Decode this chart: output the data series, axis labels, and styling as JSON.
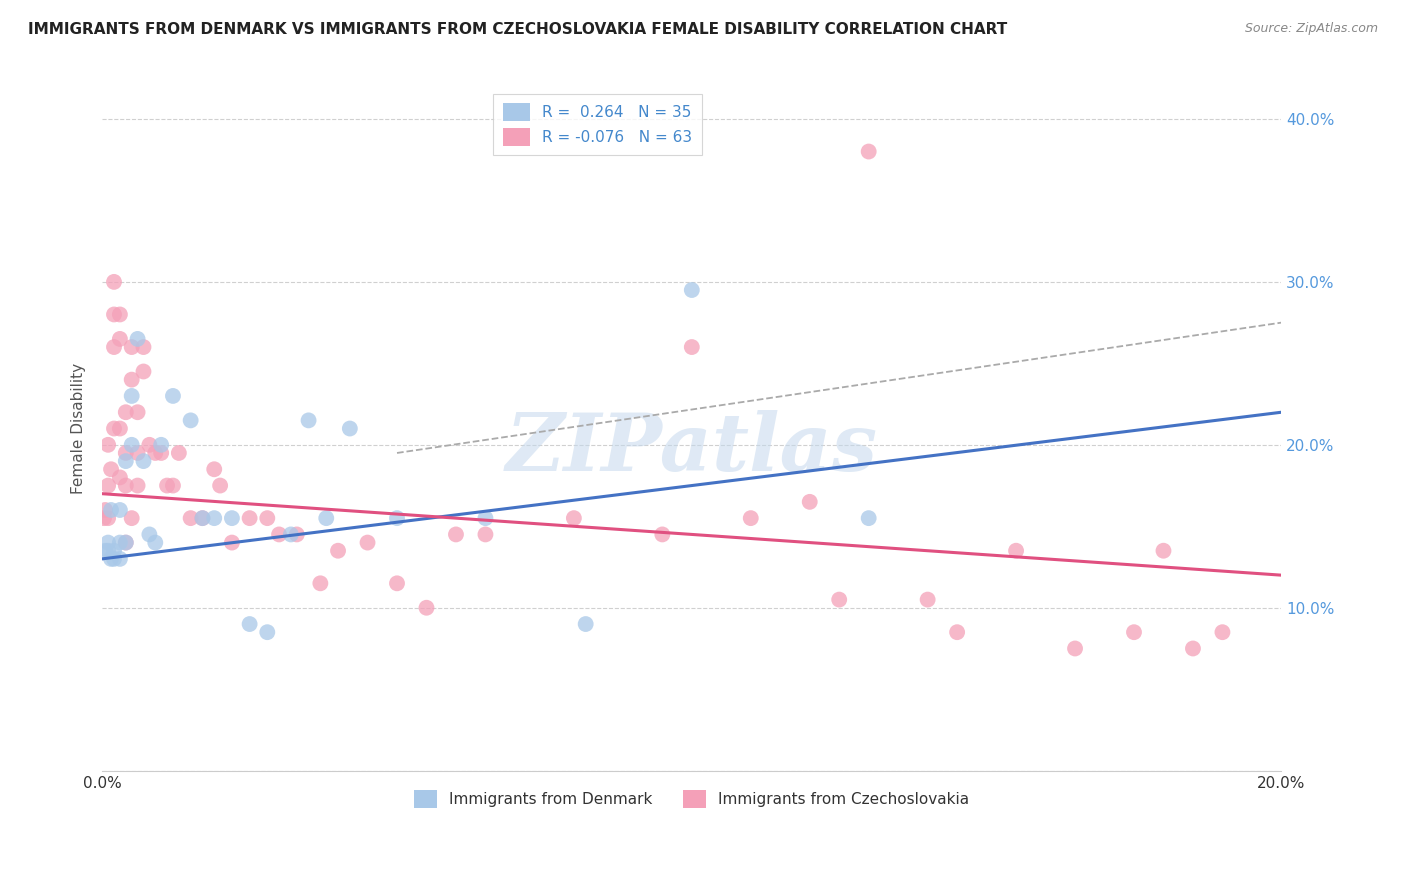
{
  "title": "IMMIGRANTS FROM DENMARK VS IMMIGRANTS FROM CZECHOSLOVAKIA FEMALE DISABILITY CORRELATION CHART",
  "source": "Source: ZipAtlas.com",
  "ylabel": "Female Disability",
  "xlim": [
    0.0,
    0.2
  ],
  "ylim": [
    0.0,
    0.42
  ],
  "xticks": [
    0.0,
    0.02,
    0.04,
    0.06,
    0.08,
    0.1,
    0.12,
    0.14,
    0.16,
    0.18,
    0.2
  ],
  "xtick_labels": [
    "0.0%",
    "",
    "",
    "",
    "",
    "",
    "",
    "",
    "",
    "",
    "20.0%"
  ],
  "yticks": [
    0.0,
    0.1,
    0.2,
    0.3,
    0.4
  ],
  "ytick_labels_right": [
    "",
    "10.0%",
    "20.0%",
    "30.0%",
    "40.0%"
  ],
  "legend_denmark_R": "0.264",
  "legend_denmark_N": "35",
  "legend_czech_R": "-0.076",
  "legend_czech_N": "63",
  "denmark_color": "#a8c8e8",
  "czech_color": "#f4a0b8",
  "denmark_line_color": "#4472c4",
  "czech_line_color": "#e05080",
  "dashed_line_color": "#aaaaaa",
  "watermark_text": "ZIPatlas",
  "dk_line_x0": 0.0,
  "dk_line_y0": 0.13,
  "dk_line_x1": 0.2,
  "dk_line_y1": 0.22,
  "cz_line_x0": 0.0,
  "cz_line_y0": 0.17,
  "cz_line_x1": 0.2,
  "cz_line_y1": 0.12,
  "dash_line_x0": 0.05,
  "dash_line_y0": 0.195,
  "dash_line_x1": 0.2,
  "dash_line_y1": 0.275,
  "denmark_x": [
    0.0005,
    0.001,
    0.001,
    0.0015,
    0.0015,
    0.002,
    0.002,
    0.003,
    0.003,
    0.003,
    0.004,
    0.004,
    0.005,
    0.005,
    0.006,
    0.007,
    0.008,
    0.009,
    0.01,
    0.012,
    0.015,
    0.017,
    0.019,
    0.022,
    0.025,
    0.028,
    0.032,
    0.035,
    0.038,
    0.042,
    0.05,
    0.065,
    0.082,
    0.1,
    0.13
  ],
  "denmark_y": [
    0.135,
    0.14,
    0.135,
    0.16,
    0.13,
    0.135,
    0.13,
    0.16,
    0.14,
    0.13,
    0.14,
    0.19,
    0.2,
    0.23,
    0.265,
    0.19,
    0.145,
    0.14,
    0.2,
    0.23,
    0.215,
    0.155,
    0.155,
    0.155,
    0.09,
    0.085,
    0.145,
    0.215,
    0.155,
    0.21,
    0.155,
    0.155,
    0.09,
    0.295,
    0.155
  ],
  "czech_x": [
    0.0003,
    0.0005,
    0.001,
    0.001,
    0.001,
    0.0015,
    0.002,
    0.002,
    0.002,
    0.002,
    0.003,
    0.003,
    0.003,
    0.003,
    0.004,
    0.004,
    0.004,
    0.004,
    0.005,
    0.005,
    0.005,
    0.006,
    0.006,
    0.006,
    0.007,
    0.007,
    0.008,
    0.009,
    0.01,
    0.011,
    0.012,
    0.013,
    0.015,
    0.017,
    0.019,
    0.02,
    0.022,
    0.025,
    0.028,
    0.03,
    0.033,
    0.037,
    0.04,
    0.045,
    0.05,
    0.055,
    0.06,
    0.065,
    0.08,
    0.095,
    0.1,
    0.11,
    0.12,
    0.125,
    0.13,
    0.14,
    0.145,
    0.155,
    0.165,
    0.175,
    0.18,
    0.185,
    0.19
  ],
  "czech_y": [
    0.155,
    0.16,
    0.155,
    0.175,
    0.2,
    0.185,
    0.21,
    0.26,
    0.28,
    0.3,
    0.18,
    0.265,
    0.28,
    0.21,
    0.22,
    0.195,
    0.175,
    0.14,
    0.24,
    0.26,
    0.155,
    0.22,
    0.195,
    0.175,
    0.26,
    0.245,
    0.2,
    0.195,
    0.195,
    0.175,
    0.175,
    0.195,
    0.155,
    0.155,
    0.185,
    0.175,
    0.14,
    0.155,
    0.155,
    0.145,
    0.145,
    0.115,
    0.135,
    0.14,
    0.115,
    0.1,
    0.145,
    0.145,
    0.155,
    0.145,
    0.26,
    0.155,
    0.165,
    0.105,
    0.38,
    0.105,
    0.085,
    0.135,
    0.075,
    0.085,
    0.135,
    0.075,
    0.085
  ]
}
